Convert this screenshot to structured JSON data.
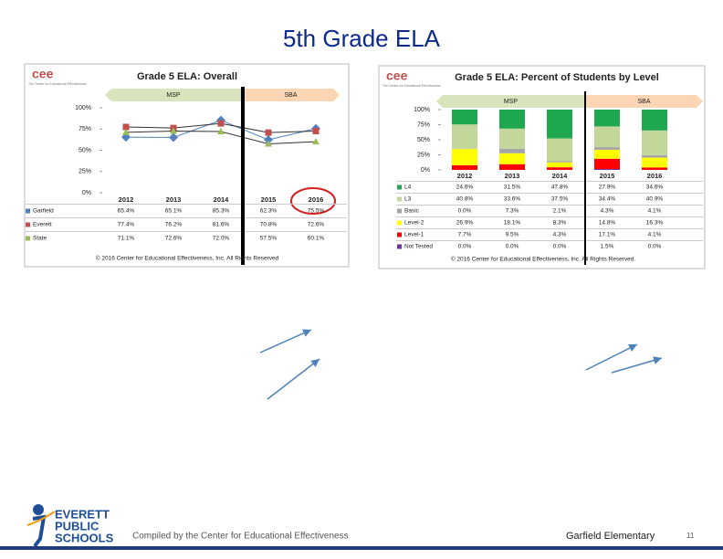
{
  "slide": {
    "title": "5th Grade ELA",
    "logo": [
      "EVERETT",
      "PUBLIC",
      "SCHOOLS"
    ],
    "footer": "Compiled by the Center for Educational Effectiveness",
    "school": "Garfield Elementary",
    "page": "11"
  },
  "chart_data": [
    {
      "type": "line",
      "title": "Grade 5 ELA: Overall",
      "logo": "cee",
      "logo_caption": "The Center for Educational Effectiveness",
      "annotations": [
        "MSP",
        "SBA"
      ],
      "categories": [
        "2012",
        "2013",
        "2014",
        "2015",
        "2016"
      ],
      "series": [
        {
          "name": "Garfield",
          "color": "#4f81bd",
          "values": [
            65.4,
            65.1,
            85.3,
            62.3,
            75.5
          ],
          "value_labels": [
            "65.4%",
            "65.1%",
            "85.3%",
            "62.3%",
            "75.5%"
          ]
        },
        {
          "name": "Everett",
          "color": "#c0504d",
          "values": [
            77.4,
            76.2,
            81.6,
            70.8,
            72.6
          ],
          "value_labels": [
            "77.4%",
            "76.2%",
            "81.6%",
            "70.8%",
            "72.6%"
          ]
        },
        {
          "name": "State",
          "color": "#9bbb59",
          "values": [
            71.1,
            72.6,
            72.0,
            57.5,
            60.1
          ],
          "value_labels": [
            "71.1%",
            "72.6%",
            "72.0%",
            "57.5%",
            "60.1%"
          ]
        }
      ],
      "ylim": [
        0,
        100
      ],
      "yticks": [
        {
          "value": 0,
          "label": "0%"
        },
        {
          "value": 25,
          "label": "25%"
        },
        {
          "value": 50,
          "label": "50%"
        },
        {
          "value": 75,
          "label": "75%"
        },
        {
          "value": 100,
          "label": "100%"
        }
      ],
      "footer": "© 2016 Center for Educational Effectiveness, Inc. All Rights Reserved"
    },
    {
      "type": "bar",
      "stacked": true,
      "title": "Grade 5 ELA: Percent of Students by Level",
      "logo": "cee",
      "logo_caption": "The Center for Educational Effectiveness",
      "annotations": [
        "MSP",
        "SBA"
      ],
      "categories": [
        "2012",
        "2013",
        "2014",
        "2015",
        "2016"
      ],
      "series": [
        {
          "name": "L4",
          "color": "#1fa84f",
          "values": [
            24.6,
            31.5,
            47.8,
            27.9,
            34.6
          ],
          "value_labels": [
            "24.6%",
            "31.5%",
            "47.8%",
            "27.9%",
            "34.6%"
          ]
        },
        {
          "name": "L3",
          "color": "#c4d79b",
          "values": [
            40.8,
            33.6,
            37.5,
            34.4,
            40.9
          ],
          "value_labels": [
            "40.8%",
            "33.6%",
            "37.5%",
            "34.4%",
            "40.9%"
          ]
        },
        {
          "name": "Basic",
          "color": "#a5a5a5",
          "values": [
            0.0,
            7.3,
            2.1,
            4.3,
            4.1
          ],
          "value_labels": [
            "0.0%",
            "7.3%",
            "2.1%",
            "4.3%",
            "4.1%"
          ]
        },
        {
          "name": "Level-2",
          "color": "#ffff00",
          "values": [
            26.9,
            18.1,
            8.3,
            14.8,
            16.3
          ],
          "value_labels": [
            "26.9%",
            "18.1%",
            "8.3%",
            "14.8%",
            "16.3%"
          ]
        },
        {
          "name": "Level-1",
          "color": "#ff0000",
          "values": [
            7.7,
            9.5,
            4.3,
            17.1,
            4.1
          ],
          "value_labels": [
            "7.7%",
            "9.5%",
            "4.3%",
            "17.1%",
            "4.1%"
          ]
        },
        {
          "name": "Not Tested",
          "color": "#7030a0",
          "values": [
            0.0,
            0.0,
            0.0,
            1.5,
            0.0
          ],
          "value_labels": [
            "0.0%",
            "0.0%",
            "0.0%",
            "1.5%",
            "0.0%"
          ]
        }
      ],
      "ylim": [
        0,
        100
      ],
      "yticks": [
        {
          "value": 0,
          "label": "0%"
        },
        {
          "value": 25,
          "label": "25%"
        },
        {
          "value": 50,
          "label": "50%"
        },
        {
          "value": 75,
          "label": "75%"
        },
        {
          "value": 100,
          "label": "100%"
        }
      ],
      "footer": "© 2016 Center for Educational Effectiveness, Inc. All Rights Reserved."
    }
  ]
}
